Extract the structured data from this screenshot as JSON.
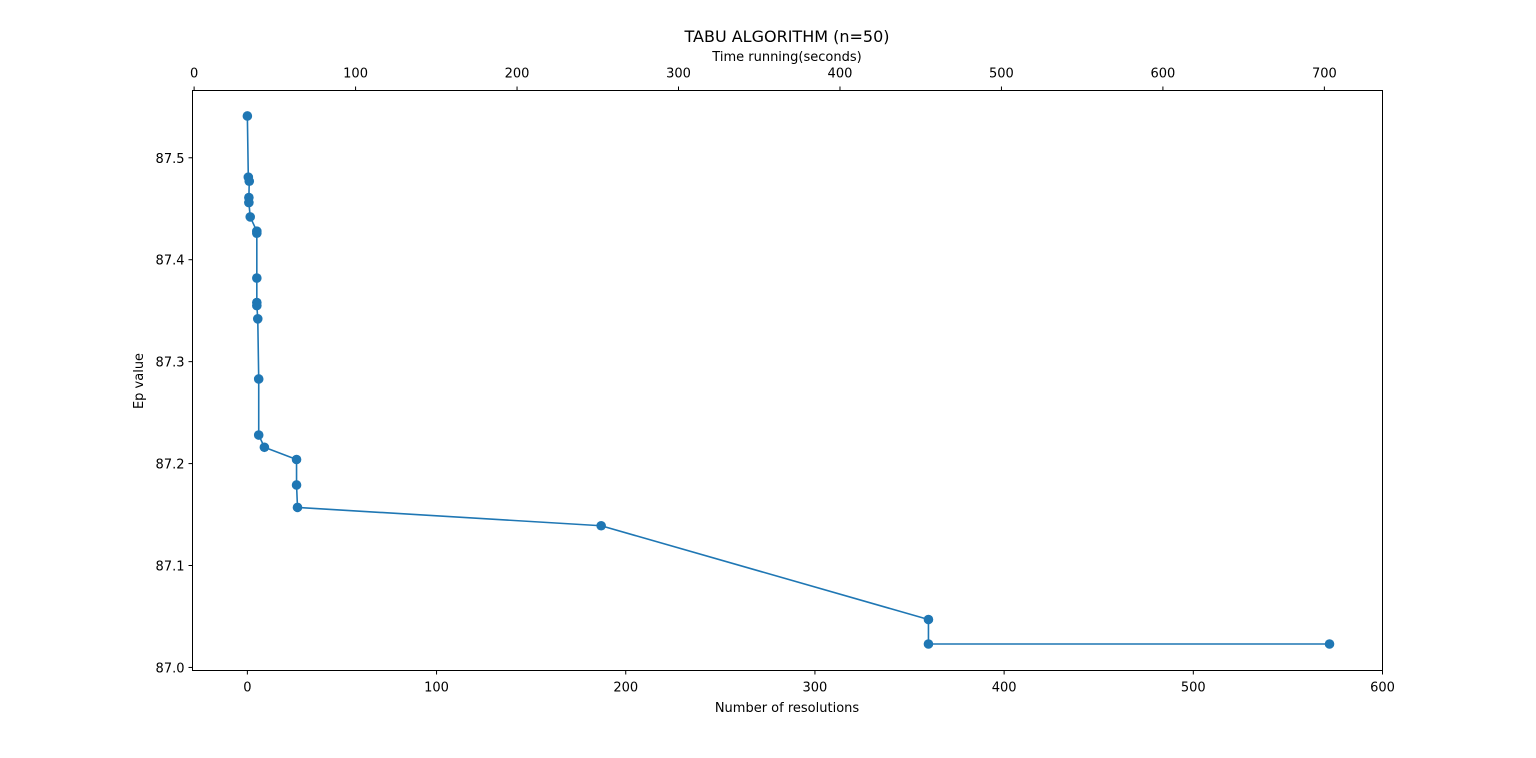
{
  "chart_data": {
    "type": "line",
    "title": "TABU ALGORITHM (n=50)",
    "xlabel": "Number of resolutions",
    "ylabel": "Ep value",
    "x2label": "Time running(seconds)",
    "xlim": [
      -29,
      600
    ],
    "ylim": [
      86.997,
      87.566
    ],
    "x2lim": [
      -1,
      736
    ],
    "x_ticks": [
      0,
      100,
      200,
      300,
      400,
      500,
      600
    ],
    "x_tick_labels": [
      "0",
      "100",
      "200",
      "300",
      "400",
      "500",
      "600"
    ],
    "y_ticks": [
      87.0,
      87.1,
      87.2,
      87.3,
      87.4,
      87.5
    ],
    "y_tick_labels": [
      "87.0",
      "87.1",
      "87.2",
      "87.3",
      "87.4",
      "87.5"
    ],
    "x2_ticks": [
      0,
      100,
      200,
      300,
      400,
      500,
      600,
      700
    ],
    "x2_tick_labels": [
      "0",
      "100",
      "200",
      "300",
      "400",
      "500",
      "600",
      "700"
    ],
    "grid": false,
    "marker": "circle",
    "color": "#1f77b4",
    "series": [
      {
        "x": [
          0,
          0.5,
          1,
          0.8,
          0.8,
          1.5,
          5,
          5,
          5,
          5,
          5,
          5.5,
          6,
          6,
          9,
          26,
          26,
          26.5,
          187,
          360,
          360,
          572
        ],
        "y": [
          87.541,
          87.481,
          87.477,
          87.461,
          87.456,
          87.442,
          87.428,
          87.426,
          87.382,
          87.358,
          87.355,
          87.342,
          87.283,
          87.228,
          87.216,
          87.204,
          87.179,
          87.157,
          87.139,
          87.047,
          87.023,
          87.023
        ]
      }
    ]
  }
}
